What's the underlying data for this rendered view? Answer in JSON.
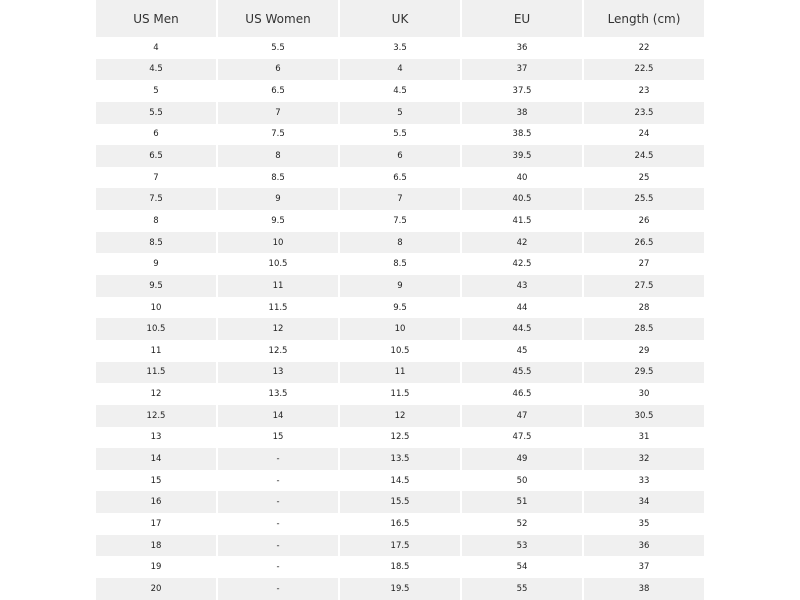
{
  "table": {
    "headers": [
      "US Men",
      "US Women",
      "UK",
      "EU",
      "Length (cm)"
    ],
    "rows": [
      [
        "4",
        "5.5",
        "3.5",
        "36",
        "22"
      ],
      [
        "4.5",
        "6",
        "4",
        "37",
        "22.5"
      ],
      [
        "5",
        "6.5",
        "4.5",
        "37.5",
        "23"
      ],
      [
        "5.5",
        "7",
        "5",
        "38",
        "23.5"
      ],
      [
        "6",
        "7.5",
        "5.5",
        "38.5",
        "24"
      ],
      [
        "6.5",
        "8",
        "6",
        "39.5",
        "24.5"
      ],
      [
        "7",
        "8.5",
        "6.5",
        "40",
        "25"
      ],
      [
        "7.5",
        "9",
        "7",
        "40.5",
        "25.5"
      ],
      [
        "8",
        "9.5",
        "7.5",
        "41.5",
        "26"
      ],
      [
        "8.5",
        "10",
        "8",
        "42",
        "26.5"
      ],
      [
        "9",
        "10.5",
        "8.5",
        "42.5",
        "27"
      ],
      [
        "9.5",
        "11",
        "9",
        "43",
        "27.5"
      ],
      [
        "10",
        "11.5",
        "9.5",
        "44",
        "28"
      ],
      [
        "10.5",
        "12",
        "10",
        "44.5",
        "28.5"
      ],
      [
        "11",
        "12.5",
        "10.5",
        "45",
        "29"
      ],
      [
        "11.5",
        "13",
        "11",
        "45.5",
        "29.5"
      ],
      [
        "12",
        "13.5",
        "11.5",
        "46.5",
        "30"
      ],
      [
        "12.5",
        "14",
        "12",
        "47",
        "30.5"
      ],
      [
        "13",
        "15",
        "12.5",
        "47.5",
        "31"
      ],
      [
        "14",
        "-",
        "13.5",
        "49",
        "32"
      ],
      [
        "15",
        "-",
        "14.5",
        "50",
        "33"
      ],
      [
        "16",
        "-",
        "15.5",
        "51",
        "34"
      ],
      [
        "17",
        "-",
        "16.5",
        "52",
        "35"
      ],
      [
        "18",
        "-",
        "17.5",
        "53",
        "36"
      ],
      [
        "19",
        "-",
        "18.5",
        "54",
        "37"
      ],
      [
        "20",
        "-",
        "19.5",
        "55",
        "38"
      ]
    ]
  }
}
